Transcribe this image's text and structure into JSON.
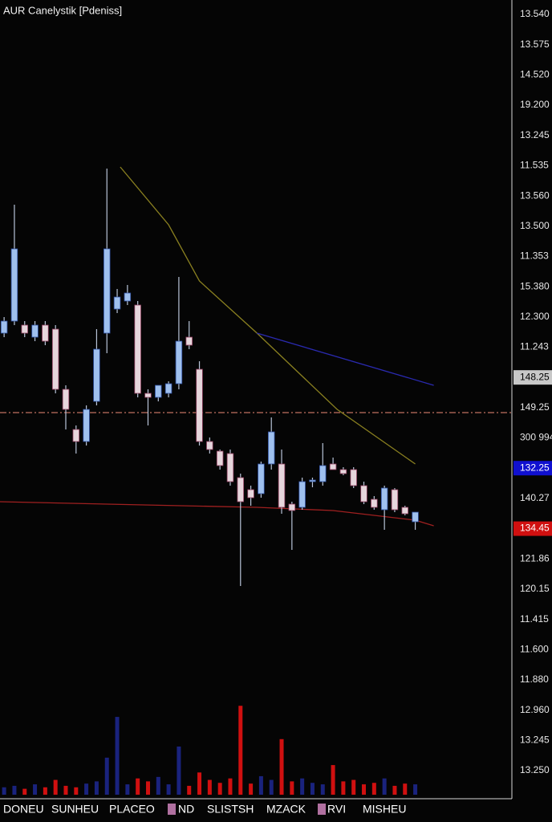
{
  "chart_data": {
    "type": "candlestick",
    "title": "AUR Canelystik [Pdeniss]",
    "xlim": [
      -0.4,
      49.4
    ],
    "ylim": [
      0,
      100
    ],
    "open": [
      58.5,
      60,
      59.5,
      58,
      59.5,
      59,
      51.5,
      46.5,
      45,
      50,
      58.5,
      61.5,
      62.5,
      62,
      51,
      50.5,
      51,
      52.2,
      58,
      54,
      45,
      43.8,
      43.5,
      40.5,
      39,
      38.5,
      42.2,
      42.2,
      37.2,
      36.8,
      40,
      40,
      42.2,
      41.5,
      41.5,
      39.5,
      37.8,
      36.5,
      39,
      36.8,
      35
    ],
    "high": [
      60.5,
      74.5,
      60,
      60,
      60,
      59.5,
      52,
      47,
      49.5,
      59,
      79,
      64,
      64.5,
      62.5,
      51.5,
      52,
      52.5,
      65.5,
      60,
      55,
      45.5,
      44,
      44,
      41,
      39.5,
      42.5,
      48,
      44,
      37.5,
      40.5,
      40.5,
      44.8,
      43,
      41.8,
      41.8,
      40,
      38.2,
      39.5,
      39.2,
      37,
      36
    ],
    "low": [
      58,
      59.5,
      58,
      57.5,
      57,
      51,
      46.5,
      43.5,
      44.5,
      49.5,
      56,
      61,
      62,
      50.5,
      47,
      50,
      50.5,
      51.5,
      56.5,
      44.5,
      43.5,
      41.5,
      39.5,
      27,
      37,
      38,
      41.5,
      36,
      31.5,
      36.5,
      39.3,
      39.5,
      41.5,
      40.8,
      39.2,
      37.2,
      36.5,
      34,
      36.2,
      35.8,
      34
    ],
    "close": [
      60,
      69,
      58.5,
      59.5,
      57.5,
      51.5,
      49,
      45,
      49,
      56.5,
      69,
      63,
      63.5,
      51,
      50.5,
      52,
      52.2,
      57.5,
      57,
      45,
      44,
      42,
      40,
      37.5,
      38,
      42.2,
      46.2,
      36.8,
      36.4,
      40,
      40.2,
      42,
      41.5,
      41,
      39.5,
      37.5,
      36.8,
      39.2,
      36.5,
      36,
      36.2
    ],
    "up_color": "#9fc0ee",
    "down_color": "#e6d6dc",
    "volume": [
      10,
      12,
      8,
      14,
      10,
      20,
      12,
      10,
      15,
      18,
      50,
      105,
      14,
      22,
      18,
      24,
      14,
      65,
      12,
      30,
      20,
      16,
      22,
      120,
      15,
      25,
      20,
      75,
      18,
      22,
      16,
      14,
      40,
      18,
      20,
      14,
      16,
      22,
      12,
      15,
      14
    ],
    "volume_ylim": [
      0,
      130
    ],
    "volume_up_color": "#1a237e",
    "volume_down_color": "#d01010",
    "overlays": [
      {
        "color": "#8a8020",
        "x": [
          11.3,
          16,
          19,
          24.6,
          32.4,
          40
        ],
        "values": [
          79.2,
          72,
          65,
          58.5,
          49,
          42.2
        ]
      },
      {
        "color": "#2a2ab0",
        "x": [
          24.6,
          41.8
        ],
        "values": [
          58.5,
          52
        ]
      },
      {
        "color": "#a02020",
        "x": [
          -0.4,
          10,
          24.6,
          32,
          40,
          41.8
        ],
        "values": [
          37.5,
          37.2,
          36.8,
          36.4,
          35.2,
          34.5
        ]
      }
    ],
    "level": 48.6,
    "level_color": "#c07060",
    "price_labels": [
      {
        "label": "13.540",
        "kind": "plain"
      },
      {
        "label": "13.575",
        "kind": "plain"
      },
      {
        "label": "14.520",
        "kind": "plain"
      },
      {
        "label": "19.200",
        "kind": "plain"
      },
      {
        "label": "13.245",
        "kind": "plain"
      },
      {
        "label": "11.535",
        "kind": "plain"
      },
      {
        "label": "13.560",
        "kind": "plain"
      },
      {
        "label": "13.500",
        "kind": "plain"
      },
      {
        "label": "11.353",
        "kind": "plain"
      },
      {
        "label": "15.380",
        "kind": "plain"
      },
      {
        "label": "12.300",
        "kind": "plain"
      },
      {
        "label": "11.243",
        "kind": "plain"
      },
      {
        "label": "148.25",
        "kind": "grey"
      },
      {
        "label": "149.25",
        "kind": "plain"
      },
      {
        "label": "300 994",
        "kind": "plain"
      },
      {
        "label": "132.25",
        "kind": "blue"
      },
      {
        "label": "140.27",
        "kind": "plain"
      },
      {
        "label": "134.45",
        "kind": "red"
      },
      {
        "label": "121.86",
        "kind": "plain"
      },
      {
        "label": "120.15",
        "kind": "plain"
      },
      {
        "label": "11.415",
        "kind": "plain"
      },
      {
        "label": "11.600",
        "kind": "plain"
      },
      {
        "label": "11.880",
        "kind": "plain"
      },
      {
        "label": "12.960",
        "kind": "plain"
      },
      {
        "label": "13.245",
        "kind": "plain"
      },
      {
        "label": "13.250",
        "kind": "plain"
      }
    ],
    "tabs": [
      "DONEU",
      "SUNHEU",
      "PLACEO",
      "ND",
      "SLISTSH",
      "MZACK",
      "RVI",
      "MISHEU"
    ]
  }
}
